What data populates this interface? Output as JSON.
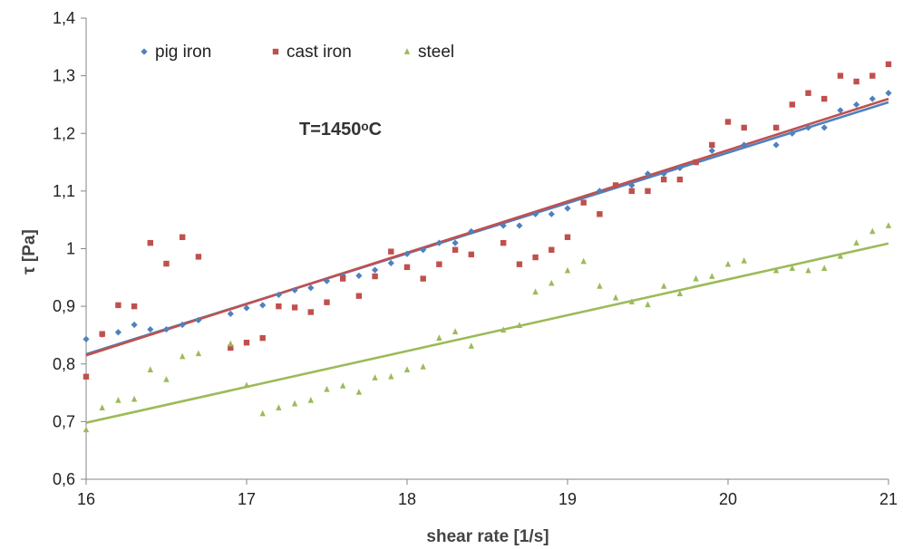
{
  "chart_data": {
    "type": "scatter",
    "xlabel": "shear rate  [1/s]",
    "ylabel": "τ [Pa]",
    "annotation": "T=1450ᵒC",
    "xlim": [
      16,
      21
    ],
    "ylim": [
      0.6,
      1.4
    ],
    "x_ticks": [
      "16",
      "17",
      "18",
      "19",
      "20",
      "21"
    ],
    "y_ticks": [
      "0,6",
      "0,7",
      "0,8",
      "0,9",
      "1",
      "1,1",
      "1,2",
      "1,3",
      "1,4"
    ],
    "grid": false,
    "legend_position": "top-left",
    "series": [
      {
        "name": "pig iron",
        "marker": "diamond",
        "color": "#4f81bd",
        "trendline": [
          [
            16,
            0.817
          ],
          [
            21,
            1.254
          ]
        ],
        "points": [
          [
            16.0,
            0.843
          ],
          [
            16.1,
            0.851
          ],
          [
            16.2,
            0.855
          ],
          [
            16.3,
            0.868
          ],
          [
            16.4,
            0.86
          ],
          [
            16.5,
            0.86
          ],
          [
            16.6,
            0.868
          ],
          [
            16.7,
            0.876
          ],
          [
            16.9,
            0.887
          ],
          [
            17.0,
            0.897
          ],
          [
            17.1,
            0.902
          ],
          [
            17.2,
            0.92
          ],
          [
            17.3,
            0.928
          ],
          [
            17.4,
            0.932
          ],
          [
            17.5,
            0.944
          ],
          [
            17.6,
            0.953
          ],
          [
            17.7,
            0.953
          ],
          [
            17.8,
            0.963
          ],
          [
            17.9,
            0.975
          ],
          [
            18.0,
            0.991
          ],
          [
            18.1,
            0.998
          ],
          [
            18.2,
            1.01
          ],
          [
            18.3,
            1.01
          ],
          [
            18.4,
            1.03
          ],
          [
            18.6,
            1.04
          ],
          [
            18.7,
            1.04
          ],
          [
            18.8,
            1.06
          ],
          [
            18.9,
            1.06
          ],
          [
            19.0,
            1.07
          ],
          [
            19.2,
            1.1
          ],
          [
            19.3,
            1.11
          ],
          [
            19.4,
            1.11
          ],
          [
            19.5,
            1.13
          ],
          [
            19.6,
            1.13
          ],
          [
            19.7,
            1.14
          ],
          [
            19.8,
            1.15
          ],
          [
            19.9,
            1.17
          ],
          [
            20.1,
            1.18
          ],
          [
            20.3,
            1.18
          ],
          [
            20.4,
            1.2
          ],
          [
            20.5,
            1.21
          ],
          [
            20.6,
            1.21
          ],
          [
            20.7,
            1.24
          ],
          [
            20.8,
            1.25
          ],
          [
            20.9,
            1.26
          ],
          [
            21.0,
            1.27
          ]
        ]
      },
      {
        "name": "cast iron",
        "marker": "square",
        "color": "#c0504d",
        "trendline": [
          [
            16,
            0.815
          ],
          [
            21,
            1.26
          ]
        ],
        "points": [
          [
            16.0,
            0.778
          ],
          [
            16.1,
            0.852
          ],
          [
            16.2,
            0.902
          ],
          [
            16.3,
            0.9
          ],
          [
            16.4,
            1.01
          ],
          [
            16.5,
            0.974
          ],
          [
            16.6,
            1.02
          ],
          [
            16.7,
            0.986
          ],
          [
            16.9,
            0.828
          ],
          [
            17.0,
            0.837
          ],
          [
            17.1,
            0.845
          ],
          [
            17.2,
            0.9
          ],
          [
            17.3,
            0.898
          ],
          [
            17.4,
            0.89
          ],
          [
            17.5,
            0.907
          ],
          [
            17.6,
            0.948
          ],
          [
            17.7,
            0.918
          ],
          [
            17.8,
            0.952
          ],
          [
            17.9,
            0.995
          ],
          [
            18.0,
            0.968
          ],
          [
            18.1,
            0.948
          ],
          [
            18.2,
            0.973
          ],
          [
            18.3,
            0.998
          ],
          [
            18.4,
            0.99
          ],
          [
            18.6,
            1.01
          ],
          [
            18.7,
            0.973
          ],
          [
            18.8,
            0.985
          ],
          [
            18.9,
            0.998
          ],
          [
            19.0,
            1.02
          ],
          [
            19.1,
            1.08
          ],
          [
            19.2,
            1.06
          ],
          [
            19.3,
            1.11
          ],
          [
            19.4,
            1.1
          ],
          [
            19.5,
            1.1
          ],
          [
            19.6,
            1.12
          ],
          [
            19.7,
            1.12
          ],
          [
            19.8,
            1.15
          ],
          [
            19.9,
            1.18
          ],
          [
            20.0,
            1.22
          ],
          [
            20.1,
            1.21
          ],
          [
            20.3,
            1.21
          ],
          [
            20.4,
            1.25
          ],
          [
            20.5,
            1.27
          ],
          [
            20.6,
            1.26
          ],
          [
            20.7,
            1.3
          ],
          [
            20.8,
            1.29
          ],
          [
            20.9,
            1.3
          ],
          [
            21.0,
            1.32
          ]
        ]
      },
      {
        "name": "steel",
        "marker": "triangle",
        "color": "#9bbb59",
        "trendline": [
          [
            16,
            0.698
          ],
          [
            21,
            1.009
          ]
        ],
        "points": [
          [
            16.0,
            0.686
          ],
          [
            16.1,
            0.724
          ],
          [
            16.2,
            0.737
          ],
          [
            16.3,
            0.739
          ],
          [
            16.4,
            0.79
          ],
          [
            16.5,
            0.773
          ],
          [
            16.6,
            0.813
          ],
          [
            16.7,
            0.818
          ],
          [
            16.9,
            0.835
          ],
          [
            17.0,
            0.763
          ],
          [
            17.1,
            0.714
          ],
          [
            17.2,
            0.724
          ],
          [
            17.3,
            0.731
          ],
          [
            17.4,
            0.737
          ],
          [
            17.5,
            0.756
          ],
          [
            17.6,
            0.762
          ],
          [
            17.7,
            0.751
          ],
          [
            17.8,
            0.776
          ],
          [
            17.9,
            0.778
          ],
          [
            18.0,
            0.79
          ],
          [
            18.1,
            0.795
          ],
          [
            18.2,
            0.845
          ],
          [
            18.3,
            0.856
          ],
          [
            18.4,
            0.831
          ],
          [
            18.6,
            0.859
          ],
          [
            18.7,
            0.867
          ],
          [
            18.8,
            0.925
          ],
          [
            18.9,
            0.94
          ],
          [
            19.0,
            0.962
          ],
          [
            19.1,
            0.978
          ],
          [
            19.2,
            0.935
          ],
          [
            19.3,
            0.915
          ],
          [
            19.4,
            0.908
          ],
          [
            19.5,
            0.903
          ],
          [
            19.6,
            0.935
          ],
          [
            19.7,
            0.922
          ],
          [
            19.8,
            0.948
          ],
          [
            19.9,
            0.952
          ],
          [
            20.0,
            0.973
          ],
          [
            20.1,
            0.979
          ],
          [
            20.3,
            0.962
          ],
          [
            20.4,
            0.966
          ],
          [
            20.5,
            0.962
          ],
          [
            20.6,
            0.966
          ],
          [
            20.7,
            0.987
          ],
          [
            20.8,
            1.01
          ],
          [
            20.9,
            1.03
          ],
          [
            21.0,
            1.04
          ]
        ]
      }
    ]
  }
}
